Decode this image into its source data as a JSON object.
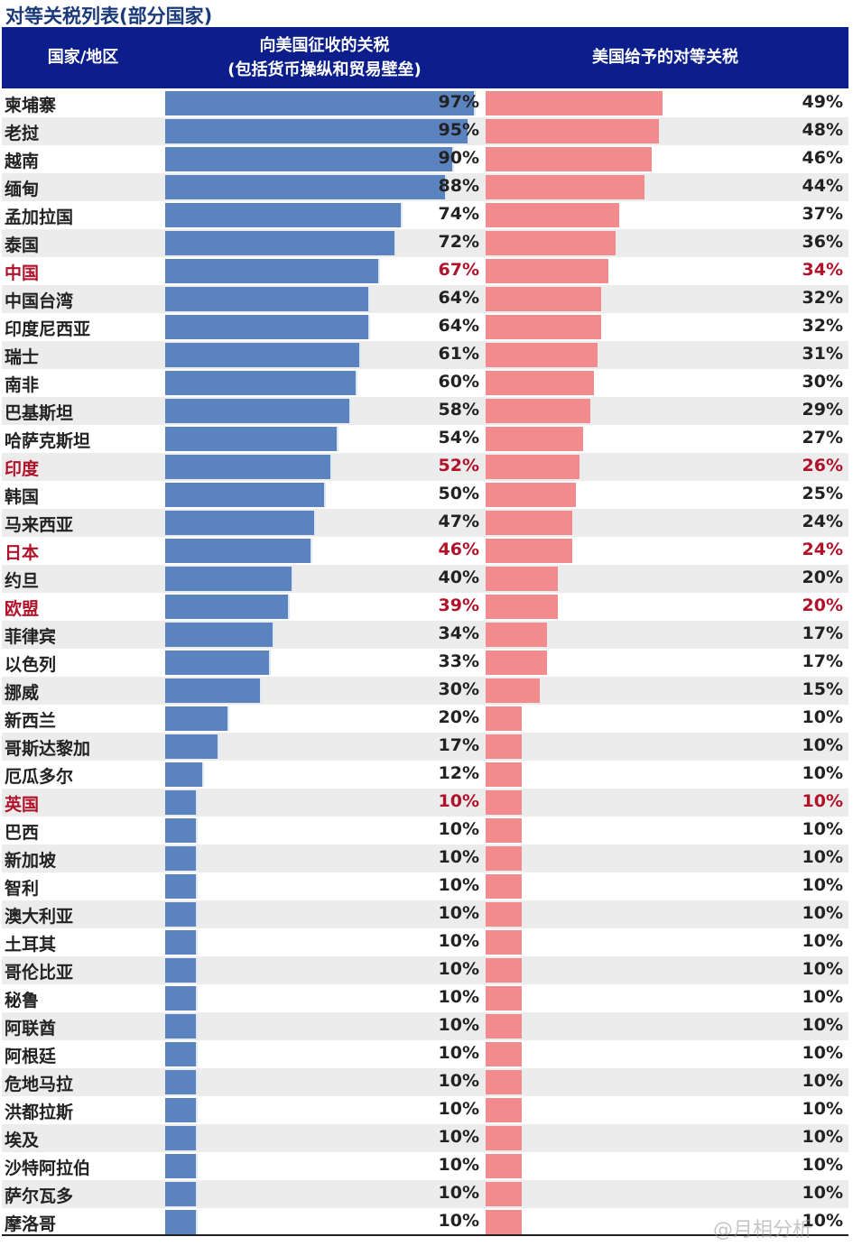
{
  "title": "对等关税列表(部分国家)",
  "watermark": "@月相分析",
  "chart_data": {
    "type": "bar",
    "title": "对等关税列表(部分国家)",
    "columns": [
      "国家/地区",
      "向美国征收的关税",
      "(包括货币操纵和贸易壁垒)",
      "美国给予的对等关税"
    ],
    "colors": {
      "levied": "#5b83c0",
      "reciprocal": "#f28b8e",
      "highlight_text": "#b0122a",
      "header": "#0b1e8c"
    },
    "categories": [
      "柬埔寨",
      "老挝",
      "越南",
      "缅甸",
      "孟加拉国",
      "泰国",
      "中国",
      "中国台湾",
      "印度尼西亚",
      "瑞士",
      "南非",
      "巴基斯坦",
      "哈萨克斯坦",
      "印度",
      "韩国",
      "马来西亚",
      "日本",
      "约旦",
      "欧盟",
      "菲律宾",
      "以色列",
      "挪威",
      "新西兰",
      "哥斯达黎加",
      "厄瓜多尔",
      "英国",
      "巴西",
      "新加坡",
      "智利",
      "澳大利亚",
      "土耳其",
      "哥伦比亚",
      "秘鲁",
      "阿联酋",
      "阿根廷",
      "危地马拉",
      "洪都拉斯",
      "埃及",
      "沙特阿拉伯",
      "萨尔瓦多",
      "摩洛哥"
    ],
    "highlighted": [
      "中国",
      "印度",
      "日本",
      "欧盟",
      "英国"
    ],
    "series": [
      {
        "name": "向美国征收的关税(包括货币操纵和贸易壁垒)",
        "values": [
          97,
          95,
          90,
          88,
          74,
          72,
          67,
          64,
          64,
          61,
          60,
          58,
          54,
          52,
          50,
          47,
          46,
          40,
          39,
          34,
          33,
          30,
          20,
          17,
          12,
          10,
          10,
          10,
          10,
          10,
          10,
          10,
          10,
          10,
          10,
          10,
          10,
          10,
          10,
          10,
          10
        ]
      },
      {
        "name": "美国给予的对等关税",
        "values": [
          49,
          48,
          46,
          44,
          37,
          36,
          34,
          32,
          32,
          31,
          30,
          29,
          27,
          26,
          25,
          24,
          24,
          20,
          20,
          17,
          17,
          15,
          10,
          10,
          10,
          10,
          10,
          10,
          10,
          10,
          10,
          10,
          10,
          10,
          10,
          10,
          10,
          10,
          10,
          10,
          10
        ]
      }
    ],
    "unit": "%"
  }
}
